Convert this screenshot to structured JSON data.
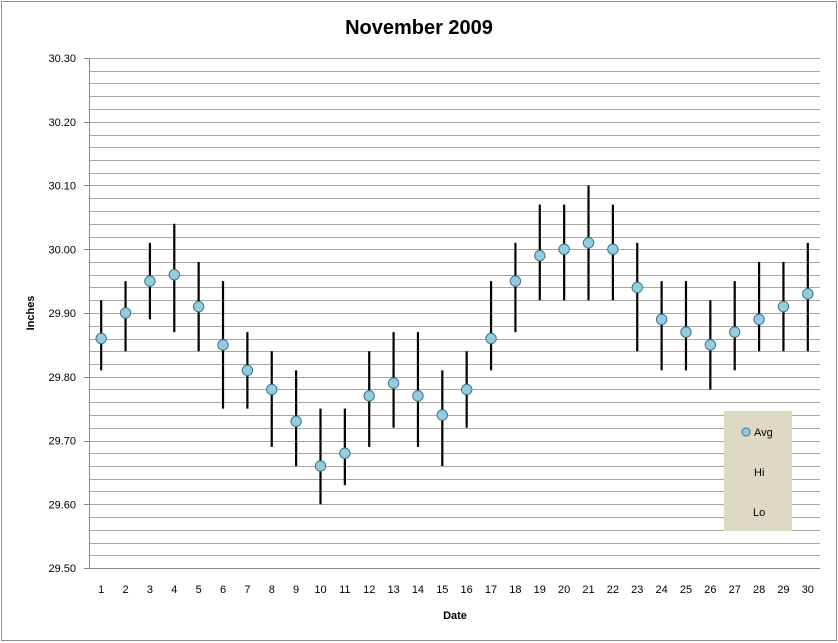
{
  "chart_data": {
    "type": "scatter",
    "title": "November 2009",
    "xlabel": "Date",
    "ylabel": "Inches",
    "ylim": [
      29.5,
      30.3
    ],
    "y_tick_labels": [
      "29.50",
      "29.60",
      "29.70",
      "29.80",
      "29.90",
      "30.00",
      "30.10",
      "30.20",
      "30.30"
    ],
    "grid": true,
    "legend": {
      "placement": "bottom-right",
      "bg_color": "#ddd9c3",
      "entries": [
        "Avg",
        "Hi",
        "Lo"
      ]
    },
    "colors": {
      "avg_marker": "#93cddd",
      "avg_marker_edge": "#3c6f8a",
      "hi_lo_line": "#000000",
      "grid": "#a6a6a6"
    },
    "x": [
      "1",
      "2",
      "3",
      "4",
      "5",
      "6",
      "7",
      "8",
      "9",
      "10",
      "11",
      "12",
      "13",
      "14",
      "15",
      "16",
      "17",
      "18",
      "19",
      "20",
      "21",
      "22",
      "23",
      "24",
      "25",
      "26",
      "27",
      "28",
      "29",
      "30"
    ],
    "series": [
      {
        "name": "Avg",
        "values": [
          29.86,
          29.9,
          29.95,
          29.96,
          29.91,
          29.85,
          29.81,
          29.78,
          29.73,
          29.66,
          29.68,
          29.77,
          29.79,
          29.77,
          29.74,
          29.78,
          29.86,
          29.95,
          29.99,
          30.0,
          30.01,
          30.0,
          29.94,
          29.89,
          29.87,
          29.85,
          29.87,
          29.89,
          29.91,
          29.93
        ]
      },
      {
        "name": "Hi",
        "values": [
          29.92,
          29.95,
          30.01,
          30.04,
          29.98,
          29.95,
          29.87,
          29.84,
          29.81,
          29.75,
          29.75,
          29.84,
          29.87,
          29.87,
          29.81,
          29.84,
          29.95,
          30.01,
          30.07,
          30.07,
          30.1,
          30.07,
          30.01,
          29.95,
          29.95,
          29.92,
          29.95,
          29.98,
          29.98,
          30.01
        ]
      },
      {
        "name": "Lo",
        "values": [
          29.81,
          29.84,
          29.89,
          29.87,
          29.84,
          29.75,
          29.75,
          29.69,
          29.66,
          29.6,
          29.63,
          29.69,
          29.72,
          29.69,
          29.66,
          29.72,
          29.81,
          29.87,
          29.92,
          29.92,
          29.92,
          29.92,
          29.84,
          29.81,
          29.81,
          29.78,
          29.81,
          29.84,
          29.84,
          29.84
        ]
      }
    ]
  }
}
